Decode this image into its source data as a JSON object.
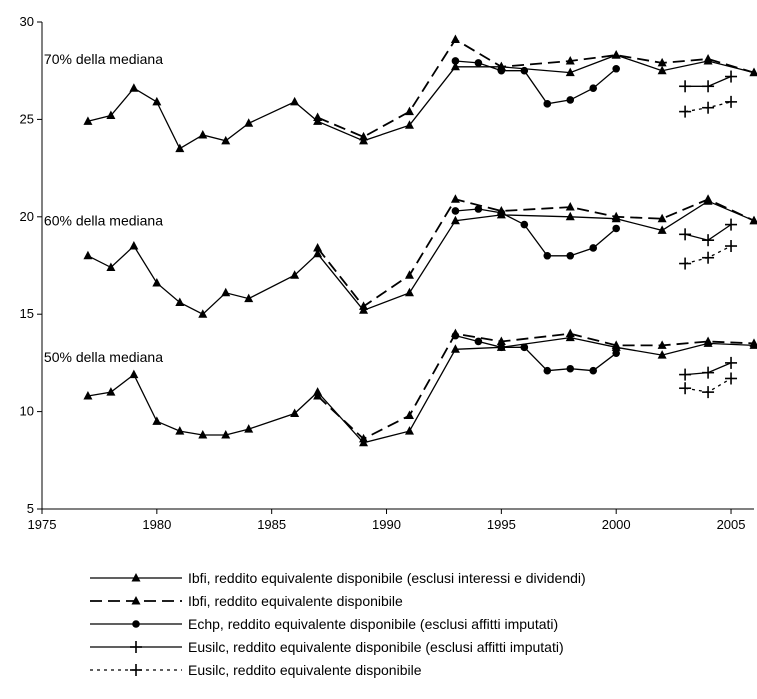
{
  "chart_data": {
    "type": "line",
    "title": "",
    "xlabel": "",
    "ylabel": "",
    "xlim": [
      1975,
      2006
    ],
    "ylim": [
      5,
      30
    ],
    "x_ticks": [
      1975,
      1980,
      1985,
      1990,
      1995,
      2000,
      2005
    ],
    "y_ticks": [
      5,
      10,
      15,
      20,
      25,
      30
    ],
    "x_tick_labels": [
      "1975",
      "1980",
      "1985",
      "1990",
      "1995",
      "2000",
      "2005"
    ],
    "y_tick_labels": [
      "5",
      "10",
      "15",
      "20",
      "25",
      "30"
    ],
    "grid": false,
    "legend_position": "bottom",
    "annotations": [
      {
        "text": "70% della mediana",
        "x": 1977,
        "y": 28.1
      },
      {
        "text": "60% della mediana",
        "x": 1977,
        "y": 19.8
      },
      {
        "text": "50% della mediana",
        "x": 1977,
        "y": 12.8
      }
    ],
    "legend": [
      {
        "series_index": 0,
        "label": "Ibfi, reddito equivalente disponibile (esclusi interessi e dividendi)"
      },
      {
        "series_index": 1,
        "label": "Ibfi, reddito equivalente disponibile"
      },
      {
        "series_index": 2,
        "label": "Echp, reddito equivalente disponibile (esclusi affitti imputati)"
      },
      {
        "series_index": 3,
        "label": "Eusilc, reddito equivalente disponibile (esclusi affitti imputati)"
      },
      {
        "series_index": 4,
        "label": "Eusilc, reddito equivalente disponibile"
      }
    ],
    "series": [
      {
        "group": "70% della mediana",
        "legend_index": 0,
        "style": "solid",
        "marker": "triangle",
        "x": [
          1977,
          1978,
          1979,
          1980,
          1981,
          1982,
          1983,
          1984,
          1986,
          1987,
          1989,
          1991,
          1993,
          1995,
          1998,
          2000,
          2002,
          2004,
          2006
        ],
        "y": [
          24.9,
          25.2,
          26.6,
          25.9,
          23.5,
          24.2,
          23.9,
          24.8,
          25.9,
          24.9,
          23.9,
          24.7,
          27.7,
          27.7,
          27.4,
          28.3,
          27.5,
          28.0,
          27.4
        ]
      },
      {
        "group": "70% della mediana",
        "legend_index": 1,
        "style": "dashed",
        "marker": "triangle",
        "x": [
          1987,
          1989,
          1991,
          1993,
          1995,
          1998,
          2000,
          2002,
          2004,
          2006
        ],
        "y": [
          25.1,
          24.1,
          25.4,
          29.1,
          27.7,
          28.0,
          28.3,
          27.9,
          28.1,
          27.4
        ]
      },
      {
        "group": "70% della mediana",
        "legend_index": 2,
        "style": "solid",
        "marker": "circle",
        "x": [
          1993,
          1994,
          1995,
          1996,
          1997,
          1998,
          1999,
          2000
        ],
        "y": [
          28.0,
          27.9,
          27.5,
          27.5,
          25.8,
          26.0,
          26.6,
          27.6
        ]
      },
      {
        "group": "70% della mediana",
        "legend_index": 3,
        "style": "solid",
        "marker": "plus",
        "x": [
          2003,
          2004,
          2005
        ],
        "y": [
          26.7,
          26.7,
          27.2
        ]
      },
      {
        "group": "70% della mediana",
        "legend_index": 4,
        "style": "dotted",
        "marker": "plus",
        "x": [
          2003,
          2004,
          2005
        ],
        "y": [
          25.4,
          25.6,
          25.9
        ]
      },
      {
        "group": "60% della mediana",
        "legend_index": 0,
        "style": "solid",
        "marker": "triangle",
        "x": [
          1977,
          1978,
          1979,
          1980,
          1981,
          1982,
          1983,
          1984,
          1986,
          1987,
          1989,
          1991,
          1993,
          1995,
          1998,
          2000,
          2002,
          2004,
          2006
        ],
        "y": [
          18.0,
          17.4,
          18.5,
          16.6,
          15.6,
          15.0,
          16.1,
          15.8,
          17.0,
          18.1,
          15.2,
          16.1,
          19.8,
          20.1,
          20.0,
          19.9,
          19.3,
          20.8,
          19.8
        ]
      },
      {
        "group": "60% della mediana",
        "legend_index": 1,
        "style": "dashed",
        "marker": "triangle",
        "x": [
          1987,
          1989,
          1991,
          1993,
          1995,
          1998,
          2000,
          2002,
          2004,
          2006
        ],
        "y": [
          18.4,
          15.4,
          17.0,
          20.9,
          20.3,
          20.5,
          20.0,
          19.9,
          20.9,
          19.8
        ]
      },
      {
        "group": "60% della mediana",
        "legend_index": 2,
        "style": "solid",
        "marker": "circle",
        "x": [
          1993,
          1994,
          1995,
          1996,
          1997,
          1998,
          1999,
          2000
        ],
        "y": [
          20.3,
          20.4,
          20.2,
          19.6,
          18.0,
          18.0,
          18.4,
          19.4
        ]
      },
      {
        "group": "60% della mediana",
        "legend_index": 3,
        "style": "solid",
        "marker": "plus",
        "x": [
          2003,
          2004,
          2005
        ],
        "y": [
          19.1,
          18.8,
          19.6
        ]
      },
      {
        "group": "60% della mediana",
        "legend_index": 4,
        "style": "dotted",
        "marker": "plus",
        "x": [
          2003,
          2004,
          2005
        ],
        "y": [
          17.6,
          17.9,
          18.5
        ]
      },
      {
        "group": "50% della mediana",
        "legend_index": 0,
        "style": "solid",
        "marker": "triangle",
        "x": [
          1977,
          1978,
          1979,
          1980,
          1981,
          1982,
          1983,
          1984,
          1986,
          1987,
          1989,
          1991,
          1993,
          1995,
          1998,
          2000,
          2002,
          2004,
          2006
        ],
        "y": [
          10.8,
          11.0,
          11.9,
          9.5,
          9.0,
          8.8,
          8.8,
          9.1,
          9.9,
          11.0,
          8.4,
          9.0,
          13.2,
          13.3,
          13.8,
          13.3,
          12.9,
          13.5,
          13.4
        ]
      },
      {
        "group": "50% della mediana",
        "legend_index": 1,
        "style": "dashed",
        "marker": "triangle",
        "x": [
          1987,
          1989,
          1991,
          1993,
          1995,
          1998,
          2000,
          2002,
          2004,
          2006
        ],
        "y": [
          10.8,
          8.6,
          9.8,
          14.0,
          13.6,
          14.0,
          13.4,
          13.4,
          13.6,
          13.5
        ]
      },
      {
        "group": "50% della mediana",
        "legend_index": 2,
        "style": "solid",
        "marker": "circle",
        "x": [
          1993,
          1994,
          1995,
          1996,
          1997,
          1998,
          1999,
          2000
        ],
        "y": [
          13.9,
          13.6,
          13.3,
          13.3,
          12.1,
          12.2,
          12.1,
          13.0
        ]
      },
      {
        "group": "50% della mediana",
        "legend_index": 3,
        "style": "solid",
        "marker": "plus",
        "x": [
          2003,
          2004,
          2005
        ],
        "y": [
          11.9,
          12.0,
          12.5
        ]
      },
      {
        "group": "50% della mediana",
        "legend_index": 4,
        "style": "dotted",
        "marker": "plus",
        "x": [
          2003,
          2004,
          2005
        ],
        "y": [
          11.2,
          11.0,
          11.7
        ]
      }
    ],
    "colors": {
      "line": "#000000",
      "background": "#ffffff"
    }
  }
}
